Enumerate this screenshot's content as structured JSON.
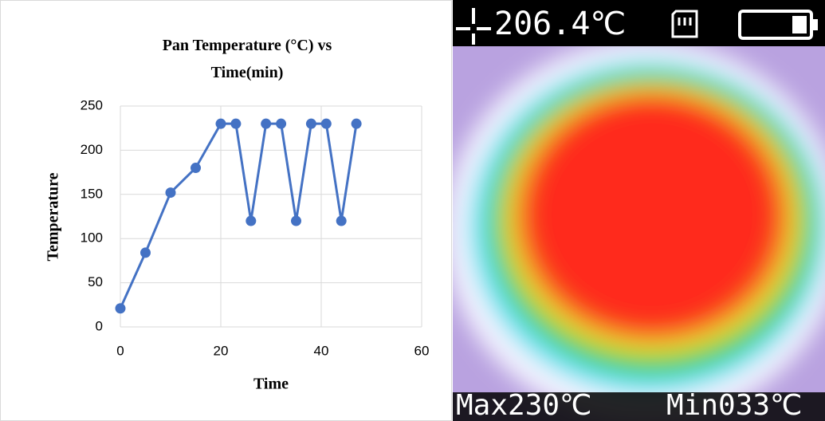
{
  "chart_data": {
    "type": "line",
    "title": "Pan Temperature (°C) vs Time(min)",
    "x_label": "Time",
    "y_label": "Temperature",
    "x": [
      0,
      5,
      10,
      15,
      20,
      23,
      26,
      29,
      32,
      35,
      38,
      41,
      44,
      47
    ],
    "values": [
      21,
      84,
      152,
      180,
      230,
      230,
      120,
      230,
      230,
      120,
      230,
      230,
      120,
      230
    ],
    "color": "#4472c4",
    "markers": true,
    "xlim": [
      0,
      60
    ],
    "xticks": [
      0,
      20,
      40,
      60
    ],
    "ylim": [
      0,
      250
    ],
    "yticks": [
      0,
      50,
      100,
      150,
      200,
      250
    ],
    "grid": true
  },
  "thermal_image": {
    "reading": "206.4℃",
    "max": "Max230℃",
    "min": "Min033℃"
  }
}
